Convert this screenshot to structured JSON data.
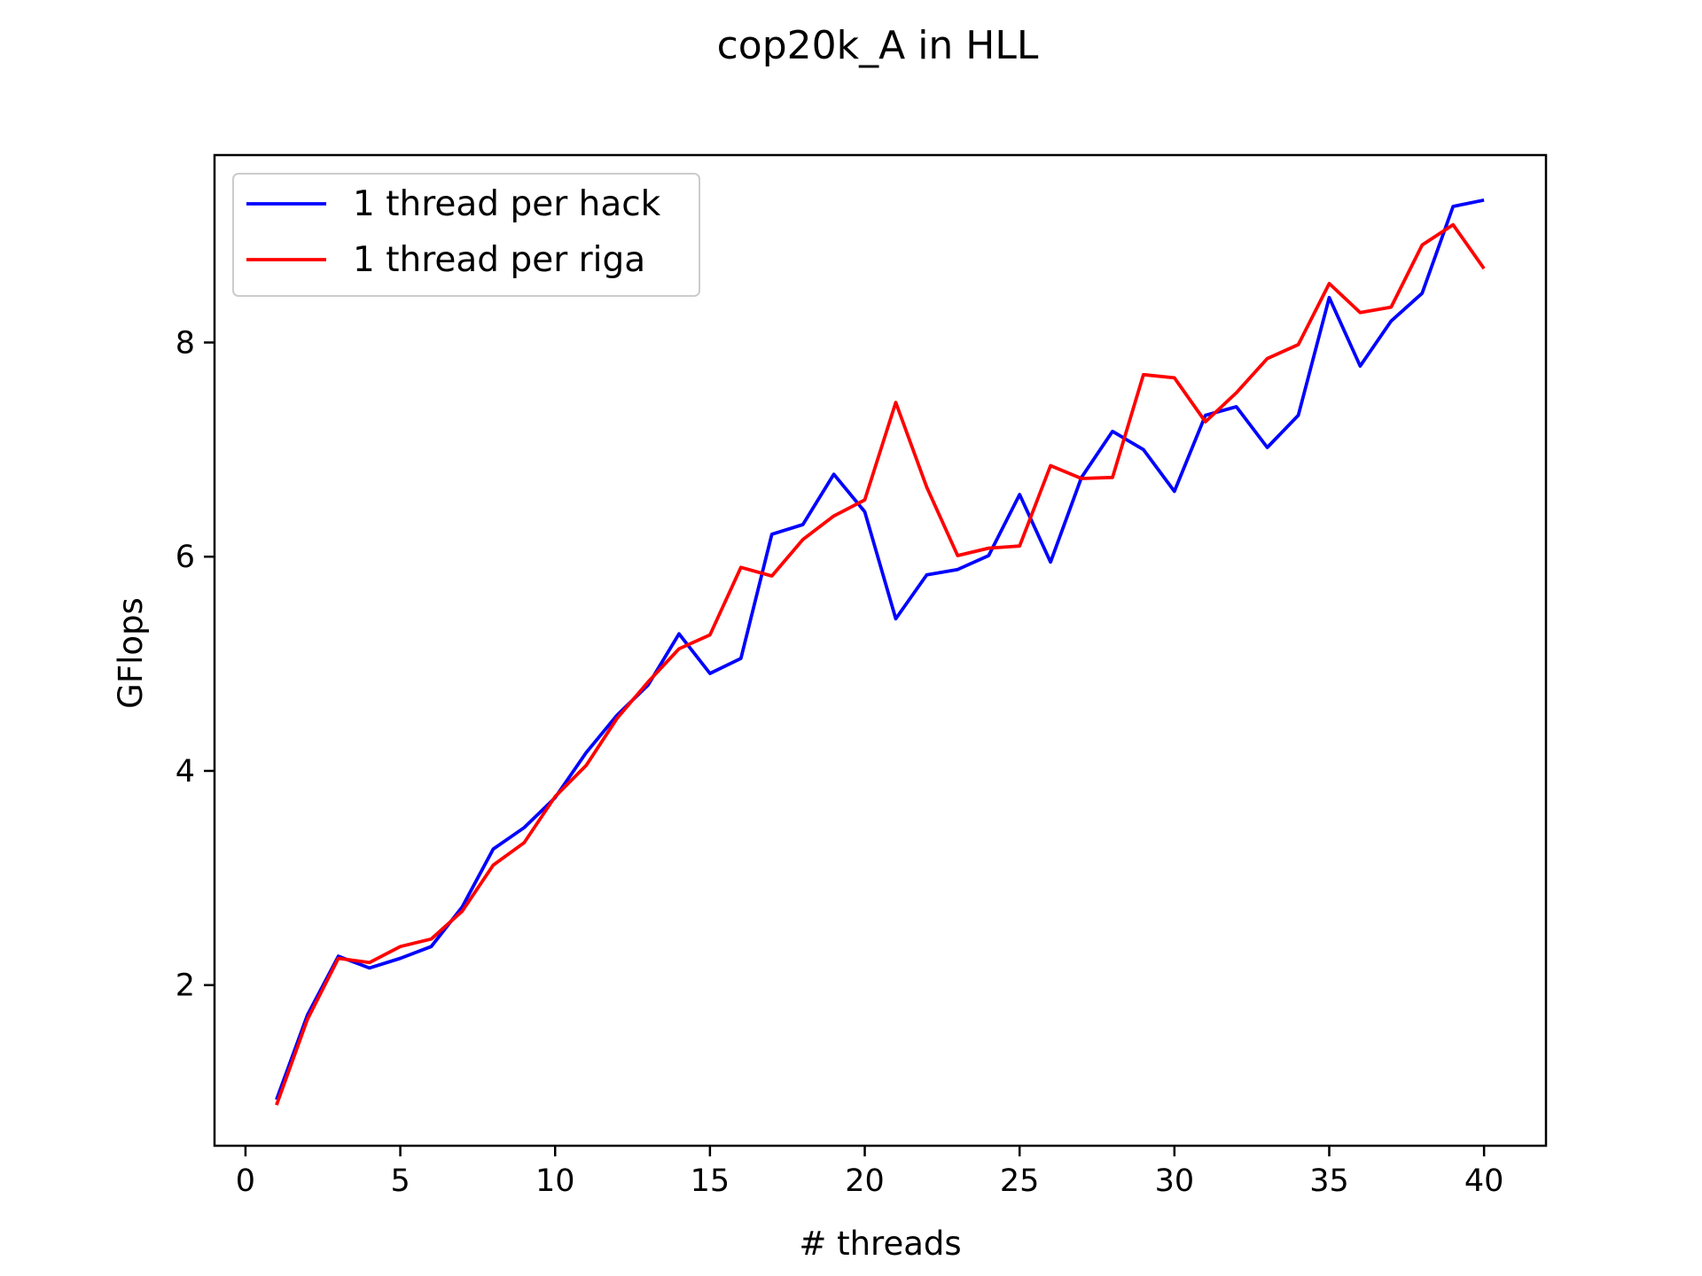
{
  "chart_data": {
    "type": "line",
    "title": "cop20k_A in HLL",
    "xlabel": "# threads",
    "ylabel": "GFlops",
    "xlim": [
      -1,
      42
    ],
    "ylim": [
      0.5,
      9.75
    ],
    "xticks": [
      0,
      5,
      10,
      15,
      20,
      25,
      30,
      35,
      40
    ],
    "yticks": [
      2,
      4,
      6,
      8
    ],
    "grid": false,
    "legend_position": "top-left",
    "x": [
      1,
      2,
      3,
      4,
      5,
      6,
      7,
      8,
      9,
      10,
      11,
      12,
      13,
      14,
      15,
      16,
      17,
      18,
      19,
      20,
      21,
      22,
      23,
      24,
      25,
      26,
      27,
      28,
      29,
      30,
      31,
      32,
      33,
      34,
      35,
      36,
      37,
      38,
      39,
      40
    ],
    "series": [
      {
        "name": "1 thread per hack",
        "color": "#0000ff",
        "values": [
          0.93,
          1.72,
          2.27,
          2.16,
          2.25,
          2.36,
          2.73,
          3.27,
          3.47,
          3.75,
          4.17,
          4.52,
          4.8,
          5.28,
          4.91,
          5.05,
          6.21,
          6.3,
          6.77,
          6.42,
          5.42,
          5.83,
          5.88,
          6.01,
          6.58,
          5.95,
          6.74,
          7.17,
          7.0,
          6.61,
          7.32,
          7.4,
          7.02,
          7.32,
          8.42,
          7.78,
          8.2,
          8.46,
          9.27,
          9.33
        ]
      },
      {
        "name": "1 thread per riga",
        "color": "#ff0000",
        "values": [
          0.88,
          1.68,
          2.25,
          2.21,
          2.36,
          2.43,
          2.69,
          3.12,
          3.33,
          3.76,
          4.05,
          4.49,
          4.83,
          5.14,
          5.27,
          5.9,
          5.82,
          6.16,
          6.38,
          6.53,
          7.44,
          6.65,
          6.01,
          6.08,
          6.1,
          6.85,
          6.73,
          6.74,
          7.7,
          7.67,
          7.26,
          7.53,
          7.85,
          7.98,
          8.55,
          8.28,
          8.33,
          8.91,
          9.1,
          8.69
        ]
      }
    ]
  }
}
